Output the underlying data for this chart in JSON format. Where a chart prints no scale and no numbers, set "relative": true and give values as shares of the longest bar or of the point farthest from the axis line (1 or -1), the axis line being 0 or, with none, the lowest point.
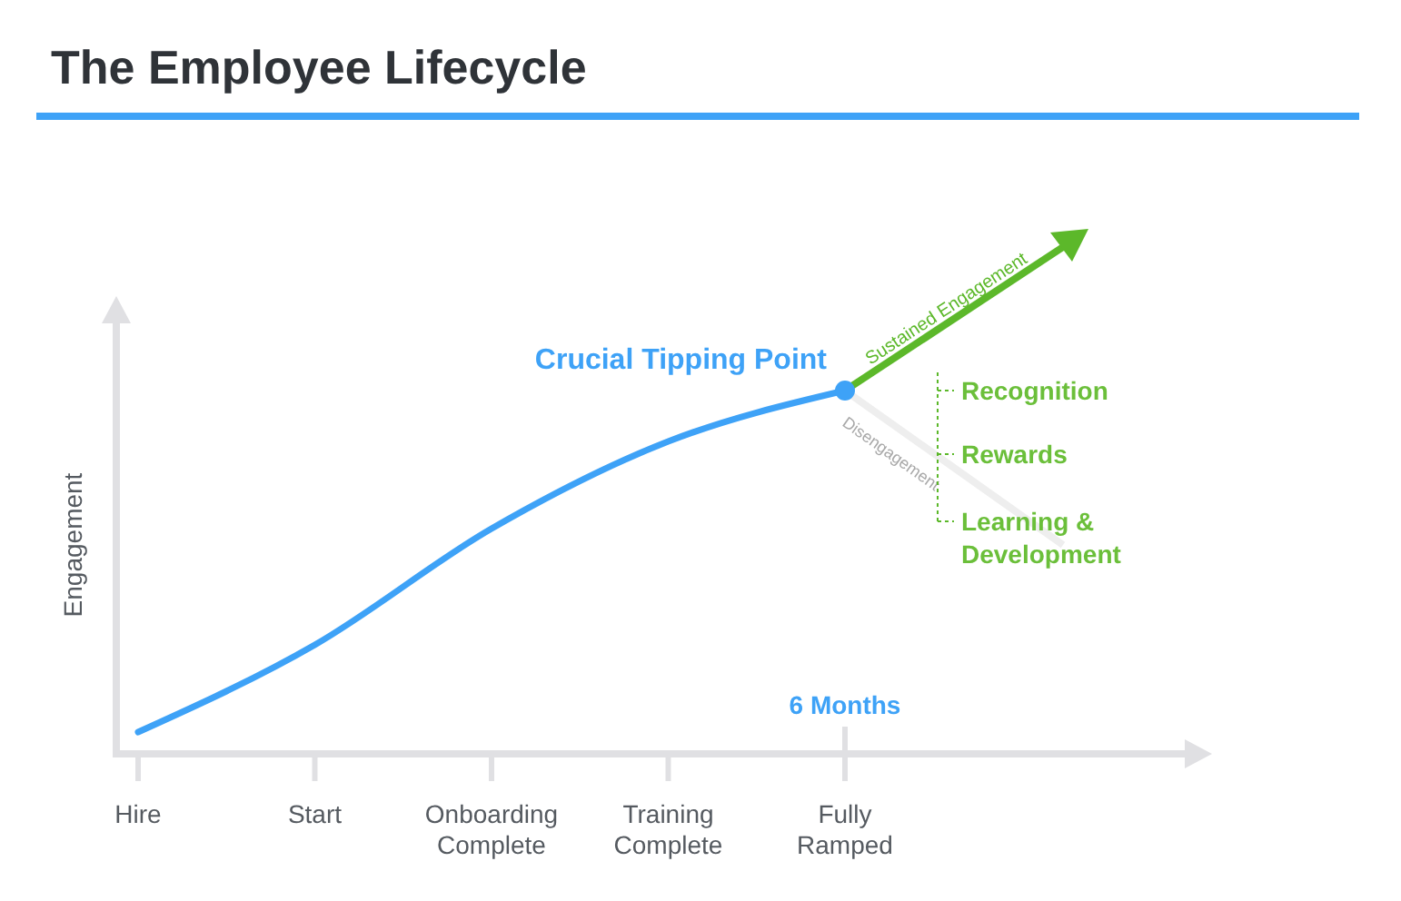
{
  "chart_data": {
    "type": "line",
    "title": "The Employee Lifecycle",
    "xlabel": null,
    "ylabel": "Engagement",
    "relative": true,
    "categories": [
      "Hire",
      "Start",
      "Onboarding\nComplete",
      "Training\nComplete",
      "Fully\nRamped"
    ],
    "series": [
      {
        "color": "#3ea2f7",
        "values": [
          0.06,
          0.3,
          0.62,
          0.86,
          1
        ]
      }
    ],
    "annotations": [
      {
        "text": "Crucial Tipping Point",
        "x": "Fully\nRamped",
        "y": 1
      },
      "6 Months",
      "Sustained Engagement",
      "Disengagement",
      "Recognition",
      "Rewards",
      "Learning &\nDevelopment"
    ],
    "grid": false,
    "marker": "none",
    "line_style": "solid"
  }
}
